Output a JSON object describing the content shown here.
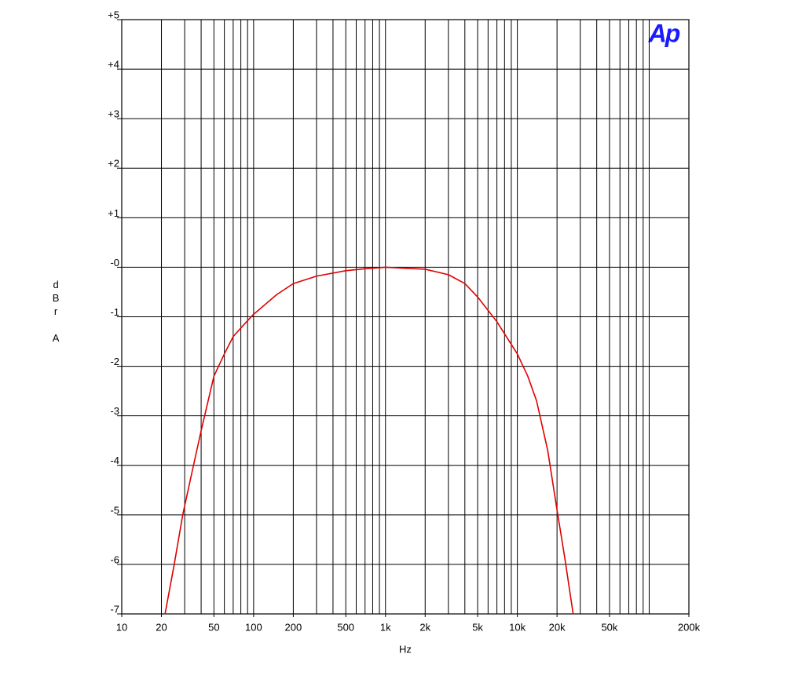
{
  "chart_data": {
    "type": "line",
    "logo": "Ap",
    "ylabel": "dBr A",
    "xlabel": "Hz",
    "xscale": "log",
    "xlim": [
      10,
      200000
    ],
    "ylim": [
      -7,
      5
    ],
    "xticks": [
      10,
      20,
      50,
      100,
      200,
      500,
      {
        "value": 1000,
        "label": "1k"
      },
      {
        "value": 2000,
        "label": "2k"
      },
      {
        "value": 5000,
        "label": "5k"
      },
      {
        "value": 10000,
        "label": "10k"
      },
      {
        "value": 20000,
        "label": "20k"
      },
      {
        "value": 50000,
        "label": "50k"
      },
      {
        "value": 200000,
        "label": "200k"
      }
    ],
    "xgrid": [
      10,
      20,
      30,
      40,
      50,
      60,
      70,
      80,
      90,
      100,
      200,
      300,
      400,
      500,
      600,
      700,
      800,
      900,
      1000,
      2000,
      3000,
      4000,
      5000,
      6000,
      7000,
      8000,
      9000,
      10000,
      20000,
      30000,
      40000,
      50000,
      60000,
      70000,
      80000,
      90000,
      100000,
      200000
    ],
    "yticks": [
      {
        "value": 5,
        "label": "+5"
      },
      {
        "value": 4,
        "label": "+4"
      },
      {
        "value": 3,
        "label": "+3"
      },
      {
        "value": 2,
        "label": "+2"
      },
      {
        "value": 1,
        "label": "+1"
      },
      {
        "value": 0,
        "label": "-0"
      },
      {
        "value": -1,
        "label": "-1"
      },
      {
        "value": -2,
        "label": "-2"
      },
      {
        "value": -3,
        "label": "-3"
      },
      {
        "value": -4,
        "label": "-4"
      },
      {
        "value": -5,
        "label": "-5"
      },
      {
        "value": -6,
        "label": "-6"
      },
      {
        "value": -7,
        "label": "-7"
      }
    ],
    "grid": true,
    "series": [
      {
        "color": "#e00000",
        "x": [
          21.3,
          25,
          29,
          35,
          40,
          50,
          60,
          70,
          85,
          100,
          150,
          200,
          300,
          500,
          700,
          1000,
          2000,
          3000,
          4000,
          5000,
          7000,
          10000,
          12000,
          14000,
          17000,
          20000,
          23000,
          26500
        ],
        "values": [
          -7,
          -6,
          -5,
          -4,
          -3.3,
          -2.2,
          -1.75,
          -1.4,
          -1.15,
          -0.95,
          -0.55,
          -0.33,
          -0.18,
          -0.07,
          -0.03,
          0,
          -0.04,
          -0.15,
          -0.33,
          -0.6,
          -1.1,
          -1.75,
          -2.2,
          -2.7,
          -3.7,
          -4.9,
          -5.9,
          -7
        ]
      }
    ]
  }
}
